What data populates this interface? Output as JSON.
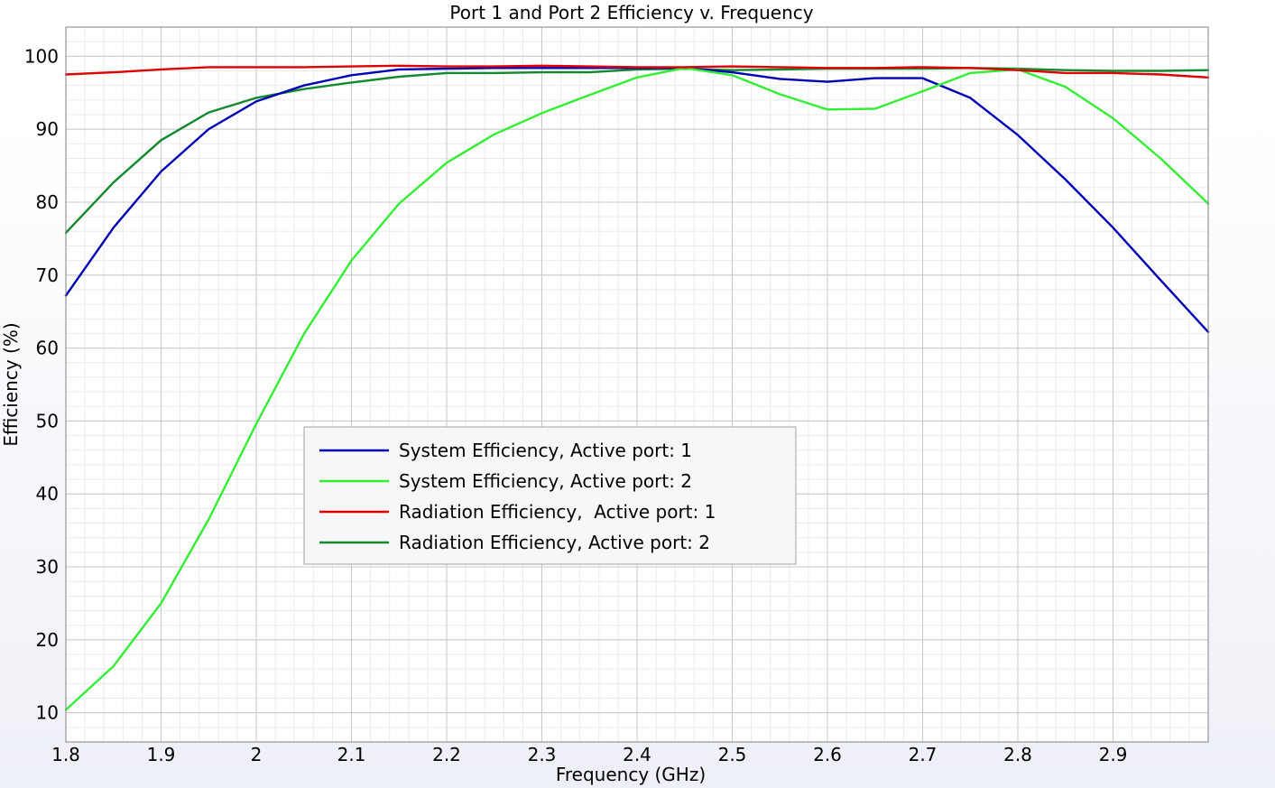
{
  "chart_data": {
    "type": "line",
    "title": "Port 1 and Port 2 Efficiency v. Frequency",
    "xlabel": "Frequency (GHz)",
    "ylabel": "Efficiency (%)",
    "xlim": [
      1.8,
      3.0
    ],
    "ylim": [
      6,
      104
    ],
    "x_ticks": [
      1.8,
      1.9,
      2.0,
      2.1,
      2.2,
      2.3,
      2.4,
      2.5,
      2.6,
      2.7,
      2.8,
      2.9
    ],
    "x_tick_labels": [
      "1.8",
      "1.9",
      "2",
      "2.1",
      "2.2",
      "2.3",
      "2.4",
      "2.5",
      "2.6",
      "2.7",
      "2.8",
      "2.9"
    ],
    "y_ticks": [
      10,
      20,
      30,
      40,
      50,
      60,
      70,
      80,
      90,
      100
    ],
    "y_tick_labels": [
      "10",
      "20",
      "30",
      "40",
      "50",
      "60",
      "70",
      "80",
      "90",
      "100"
    ],
    "grid": true,
    "minor_grid": true,
    "legend_position": "center-left",
    "x": [
      1.8,
      1.85,
      1.9,
      1.95,
      2.0,
      2.05,
      2.1,
      2.15,
      2.2,
      2.25,
      2.3,
      2.35,
      2.4,
      2.45,
      2.5,
      2.55,
      2.6,
      2.65,
      2.7,
      2.75,
      2.8,
      2.85,
      2.9,
      2.95,
      3.0
    ],
    "series": [
      {
        "name": "System Efficiency, Active port: 1",
        "color": "#0000b4",
        "values": [
          67.2,
          76.5,
          84.2,
          90.0,
          93.8,
          96.0,
          97.4,
          98.2,
          98.3,
          98.4,
          98.4,
          98.4,
          98.4,
          98.4,
          97.8,
          96.9,
          96.5,
          97.0,
          97.0,
          94.3,
          89.2,
          83.1,
          76.5,
          69.3,
          62.2
        ]
      },
      {
        "name": "System Efficiency, Active port: 2",
        "color": "#33ee33",
        "values": [
          10.4,
          16.4,
          25.0,
          36.5,
          49.6,
          61.9,
          72.0,
          79.8,
          85.4,
          89.3,
          92.2,
          94.7,
          97.1,
          98.4,
          97.4,
          94.8,
          92.7,
          92.8,
          95.2,
          97.7,
          98.2,
          95.8,
          91.5,
          86.0,
          79.8
        ]
      },
      {
        "name": "Radiation Efficiency,  Active port: 1",
        "color": "#dd0000",
        "values": [
          97.5,
          97.8,
          98.2,
          98.5,
          98.5,
          98.5,
          98.6,
          98.7,
          98.6,
          98.6,
          98.7,
          98.6,
          98.5,
          98.5,
          98.6,
          98.5,
          98.4,
          98.4,
          98.5,
          98.4,
          98.1,
          97.7,
          97.7,
          97.5,
          97.1
        ]
      },
      {
        "name": "Radiation Efficiency, Active port: 2",
        "color": "#13882e",
        "values": [
          75.8,
          82.7,
          88.5,
          92.3,
          94.3,
          95.5,
          96.4,
          97.2,
          97.7,
          97.7,
          97.8,
          97.8,
          98.2,
          98.3,
          98.1,
          98.2,
          98.3,
          98.3,
          98.3,
          98.4,
          98.3,
          98.1,
          98.0,
          98.0,
          98.1
        ]
      }
    ]
  }
}
